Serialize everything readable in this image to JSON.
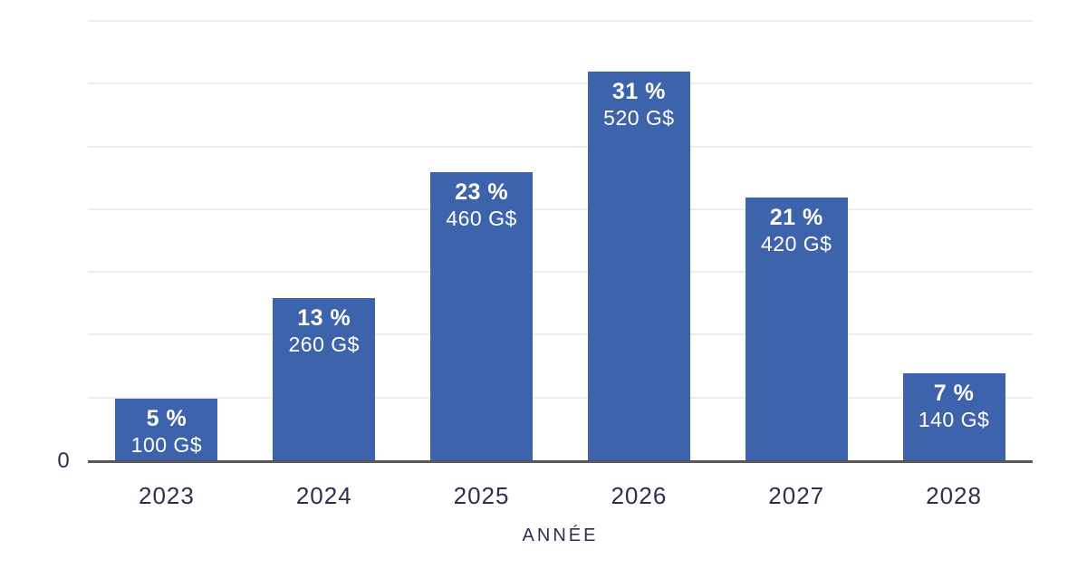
{
  "chart_data": {
    "type": "bar",
    "title": "",
    "xlabel": "ANNÉE",
    "ylabel": "",
    "categories": [
      "2023",
      "2024",
      "2025",
      "2026",
      "2027",
      "2028"
    ],
    "series": [
      {
        "name": "percentage",
        "unit": "%",
        "values": [
          5,
          13,
          23,
          31,
          21,
          7
        ]
      },
      {
        "name": "amount",
        "unit": "G$",
        "values": [
          100,
          260,
          460,
          520,
          420,
          140
        ]
      }
    ],
    "bars": [
      {
        "year": "2023",
        "pct": 5,
        "pct_label": "5 %",
        "amount_label": "100 G$"
      },
      {
        "year": "2024",
        "pct": 13,
        "pct_label": "13 %",
        "amount_label": "260 G$"
      },
      {
        "year": "2025",
        "pct": 23,
        "pct_label": "23 %",
        "amount_label": "460 G$"
      },
      {
        "year": "2026",
        "pct": 31,
        "pct_label": "31 %",
        "amount_label": "520 G$"
      },
      {
        "year": "2027",
        "pct": 21,
        "pct_label": "21 %",
        "amount_label": "420 G$"
      },
      {
        "year": "2028",
        "pct": 7,
        "pct_label": "7 %",
        "amount_label": "140 G$"
      }
    ],
    "y_axis": {
      "zero_label": "0",
      "ylim": [
        0,
        35
      ],
      "grid_step": 5,
      "grid": true,
      "legend": "none"
    },
    "colors": {
      "bar": "#3d63ac",
      "bar_label_text": "#ffffff",
      "axis_text": "#2e2e4d",
      "axis_line": "#58585a",
      "gridline": "#ededed",
      "background": "#ffffff"
    }
  }
}
